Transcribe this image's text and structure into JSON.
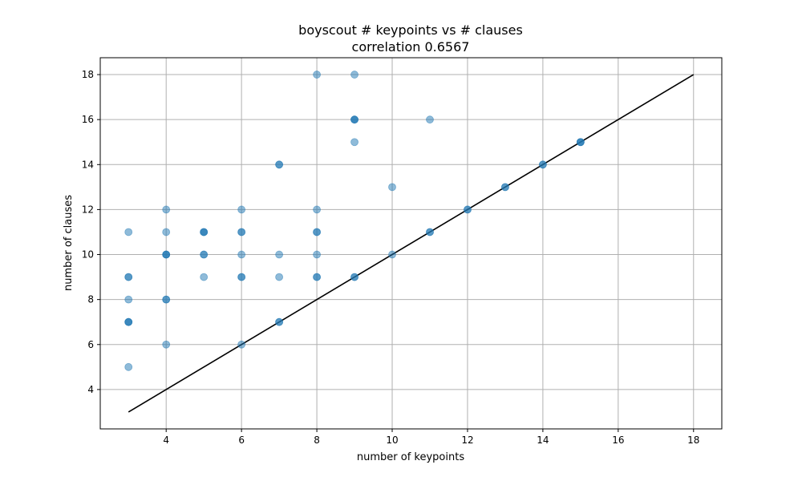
{
  "chart_data": {
    "type": "scatter",
    "title": "boyscout # keypoints vs # clauses",
    "subtitle": "correlation 0.6567",
    "xlabel": "number of keypoints",
    "ylabel": "number of clauses",
    "xlim": [
      2.25,
      18.75
    ],
    "ylim": [
      2.25,
      18.75
    ],
    "xticks": [
      4,
      6,
      8,
      10,
      12,
      14,
      16,
      18
    ],
    "yticks": [
      4,
      6,
      8,
      10,
      12,
      14,
      16,
      18
    ],
    "xtick_labels": [
      "4",
      "6",
      "8",
      "10",
      "12",
      "14",
      "16",
      "18"
    ],
    "ytick_labels": [
      "4",
      "6",
      "8",
      "10",
      "12",
      "14",
      "16",
      "18"
    ],
    "grid": true,
    "legend": "none",
    "points": [
      [
        3,
        5
      ],
      [
        3,
        7
      ],
      [
        3,
        7
      ],
      [
        3,
        7
      ],
      [
        3,
        8
      ],
      [
        3,
        9
      ],
      [
        3,
        9
      ],
      [
        3,
        11
      ],
      [
        4,
        6
      ],
      [
        4,
        8
      ],
      [
        4,
        8
      ],
      [
        4,
        10
      ],
      [
        4,
        10
      ],
      [
        4,
        10
      ],
      [
        4,
        11
      ],
      [
        4,
        12
      ],
      [
        5,
        9
      ],
      [
        5,
        10
      ],
      [
        5,
        10
      ],
      [
        5,
        11
      ],
      [
        5,
        11
      ],
      [
        5,
        11
      ],
      [
        6,
        6
      ],
      [
        6,
        9
      ],
      [
        6,
        9
      ],
      [
        6,
        10
      ],
      [
        6,
        11
      ],
      [
        6,
        11
      ],
      [
        6,
        12
      ],
      [
        7,
        7
      ],
      [
        7,
        7
      ],
      [
        7,
        9
      ],
      [
        7,
        10
      ],
      [
        7,
        14
      ],
      [
        7,
        14
      ],
      [
        8,
        9
      ],
      [
        8,
        9
      ],
      [
        8,
        10
      ],
      [
        8,
        11
      ],
      [
        8,
        11
      ],
      [
        8,
        12
      ],
      [
        8,
        18
      ],
      [
        9,
        9
      ],
      [
        9,
        9
      ],
      [
        9,
        15
      ],
      [
        9,
        16
      ],
      [
        9,
        16
      ],
      [
        9,
        16
      ],
      [
        9,
        18
      ],
      [
        10,
        10
      ],
      [
        10,
        13
      ],
      [
        11,
        11
      ],
      [
        11,
        11
      ],
      [
        11,
        16
      ],
      [
        12,
        12
      ],
      [
        12,
        12
      ],
      [
        13,
        13
      ],
      [
        13,
        13
      ],
      [
        14,
        14
      ],
      [
        14,
        14
      ],
      [
        15,
        15
      ],
      [
        15,
        15
      ],
      [
        15,
        15
      ]
    ],
    "reference_line": {
      "x": [
        3,
        18
      ],
      "y": [
        3,
        18
      ]
    },
    "marker_color": "#1f77b4",
    "marker_alpha": 0.5,
    "line_color": "#000000"
  }
}
